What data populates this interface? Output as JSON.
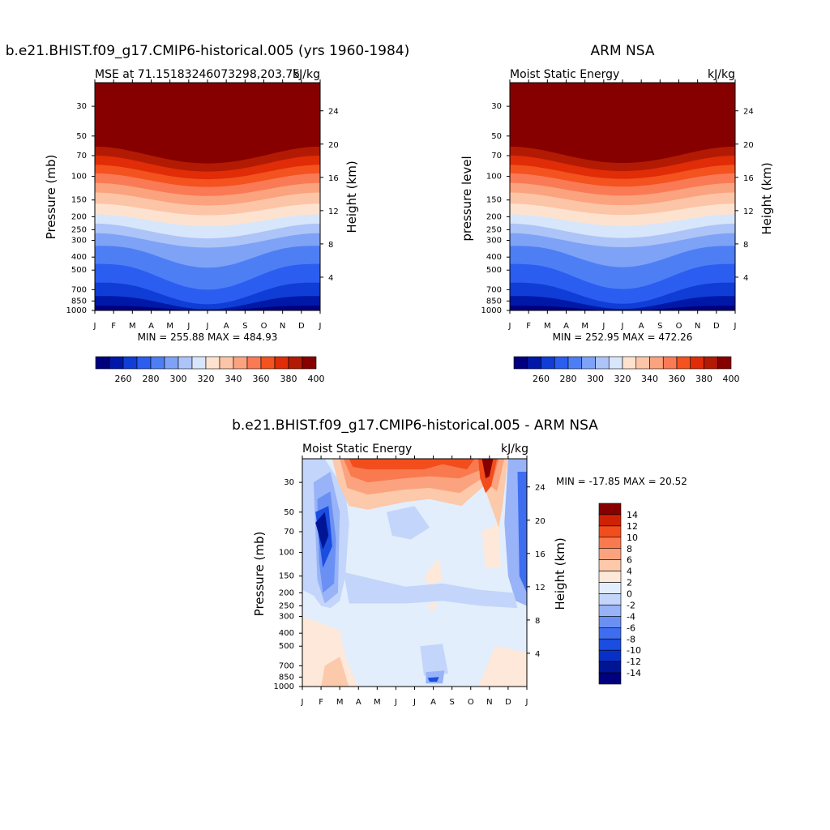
{
  "chart_data": [
    {
      "type": "heatmap",
      "title": "b.e21.BHIST.f09_g17.CMIP6-historical.005 (yrs 1960-1984)",
      "left_string": "MSE at 71.15183246073298,203.75",
      "right_string": "kJ/kg",
      "ylabel": "Pressure (mb)",
      "ylabel_right": "Height (km)",
      "min_max": "MIN = 255.88 MAX = 484.93",
      "x_ticks": [
        "J",
        "F",
        "M",
        "A",
        "M",
        "J",
        "J",
        "A",
        "S",
        "O",
        "N",
        "D",
        "J"
      ],
      "y_ticks": [
        "30",
        "50",
        "70",
        "100",
        "150",
        "200",
        "250",
        "300",
        "400",
        "500",
        "700",
        "850",
        "1000"
      ],
      "y2_ticks": [
        "24",
        "20",
        "16",
        "12",
        "8",
        "4"
      ],
      "colorbar_labels": [
        "260",
        "280",
        "300",
        "320",
        "340",
        "360",
        "380",
        "400"
      ],
      "min": 255.88,
      "max": 484.93,
      "ylim": [
        1000,
        20
      ]
    },
    {
      "type": "heatmap",
      "title": "ARM NSA",
      "left_string": "Moist Static Energy",
      "right_string": "kJ/kg",
      "ylabel": "pressure level",
      "ylabel_right": "Height (km)",
      "min_max": "MIN = 252.95 MAX = 472.26",
      "x_ticks": [
        "J",
        "F",
        "M",
        "A",
        "M",
        "J",
        "J",
        "A",
        "S",
        "O",
        "N",
        "D",
        "J"
      ],
      "y_ticks": [
        "30",
        "50",
        "70",
        "100",
        "150",
        "200",
        "250",
        "300",
        "400",
        "500",
        "700",
        "850",
        "1000"
      ],
      "y2_ticks": [
        "24",
        "20",
        "16",
        "12",
        "8",
        "4"
      ],
      "colorbar_labels": [
        "260",
        "280",
        "300",
        "320",
        "340",
        "360",
        "380",
        "400"
      ],
      "min": 252.95,
      "max": 472.26,
      "ylim": [
        1000,
        20
      ]
    },
    {
      "type": "heatmap",
      "title": "b.e21.BHIST.f09_g17.CMIP6-historical.005 - ARM NSA",
      "left_string": "Moist Static Energy",
      "right_string": "kJ/kg",
      "ylabel": "Pressure (mb)",
      "ylabel_right": "Height (km)",
      "min_max": "MIN = -17.85 MAX =  20.52",
      "x_ticks": [
        "J",
        "F",
        "M",
        "A",
        "M",
        "J",
        "J",
        "A",
        "S",
        "O",
        "N",
        "D",
        "J"
      ],
      "y_ticks": [
        "30",
        "50",
        "70",
        "100",
        "150",
        "200",
        "250",
        "300",
        "400",
        "500",
        "700",
        "850",
        "1000"
      ],
      "y2_ticks": [
        "24",
        "20",
        "16",
        "12",
        "8",
        "4"
      ],
      "colorbar_labels": [
        "14",
        "12",
        "10",
        "8",
        "6",
        "4",
        "2",
        "0",
        "-2",
        "-4",
        "-6",
        "-8",
        "-10",
        "-12",
        "-14"
      ],
      "min": -17.85,
      "max": 20.52,
      "ylim": [
        1000,
        20
      ]
    }
  ],
  "colors": {
    "mse_levels": [
      "#00007f",
      "#0018a8",
      "#0f3dd6",
      "#2a5df0",
      "#4e7ef4",
      "#7ea2f6",
      "#adc4f8",
      "#d8e6fb",
      "#fde3cf",
      "#fcc5a7",
      "#fba27e",
      "#f97a55",
      "#f4521f",
      "#e02c07",
      "#b31a04",
      "#870000"
    ],
    "diff_levels": [
      "#00007f",
      "#001595",
      "#0730c6",
      "#1b4ddf",
      "#3e6df0",
      "#6a90f3",
      "#98b3f7",
      "#c3d5fa",
      "#e3eefc",
      "#fde8d9",
      "#fcc9ab",
      "#fba37f",
      "#fa7a4f",
      "#f24d1d",
      "#cf2204",
      "#870000"
    ]
  }
}
